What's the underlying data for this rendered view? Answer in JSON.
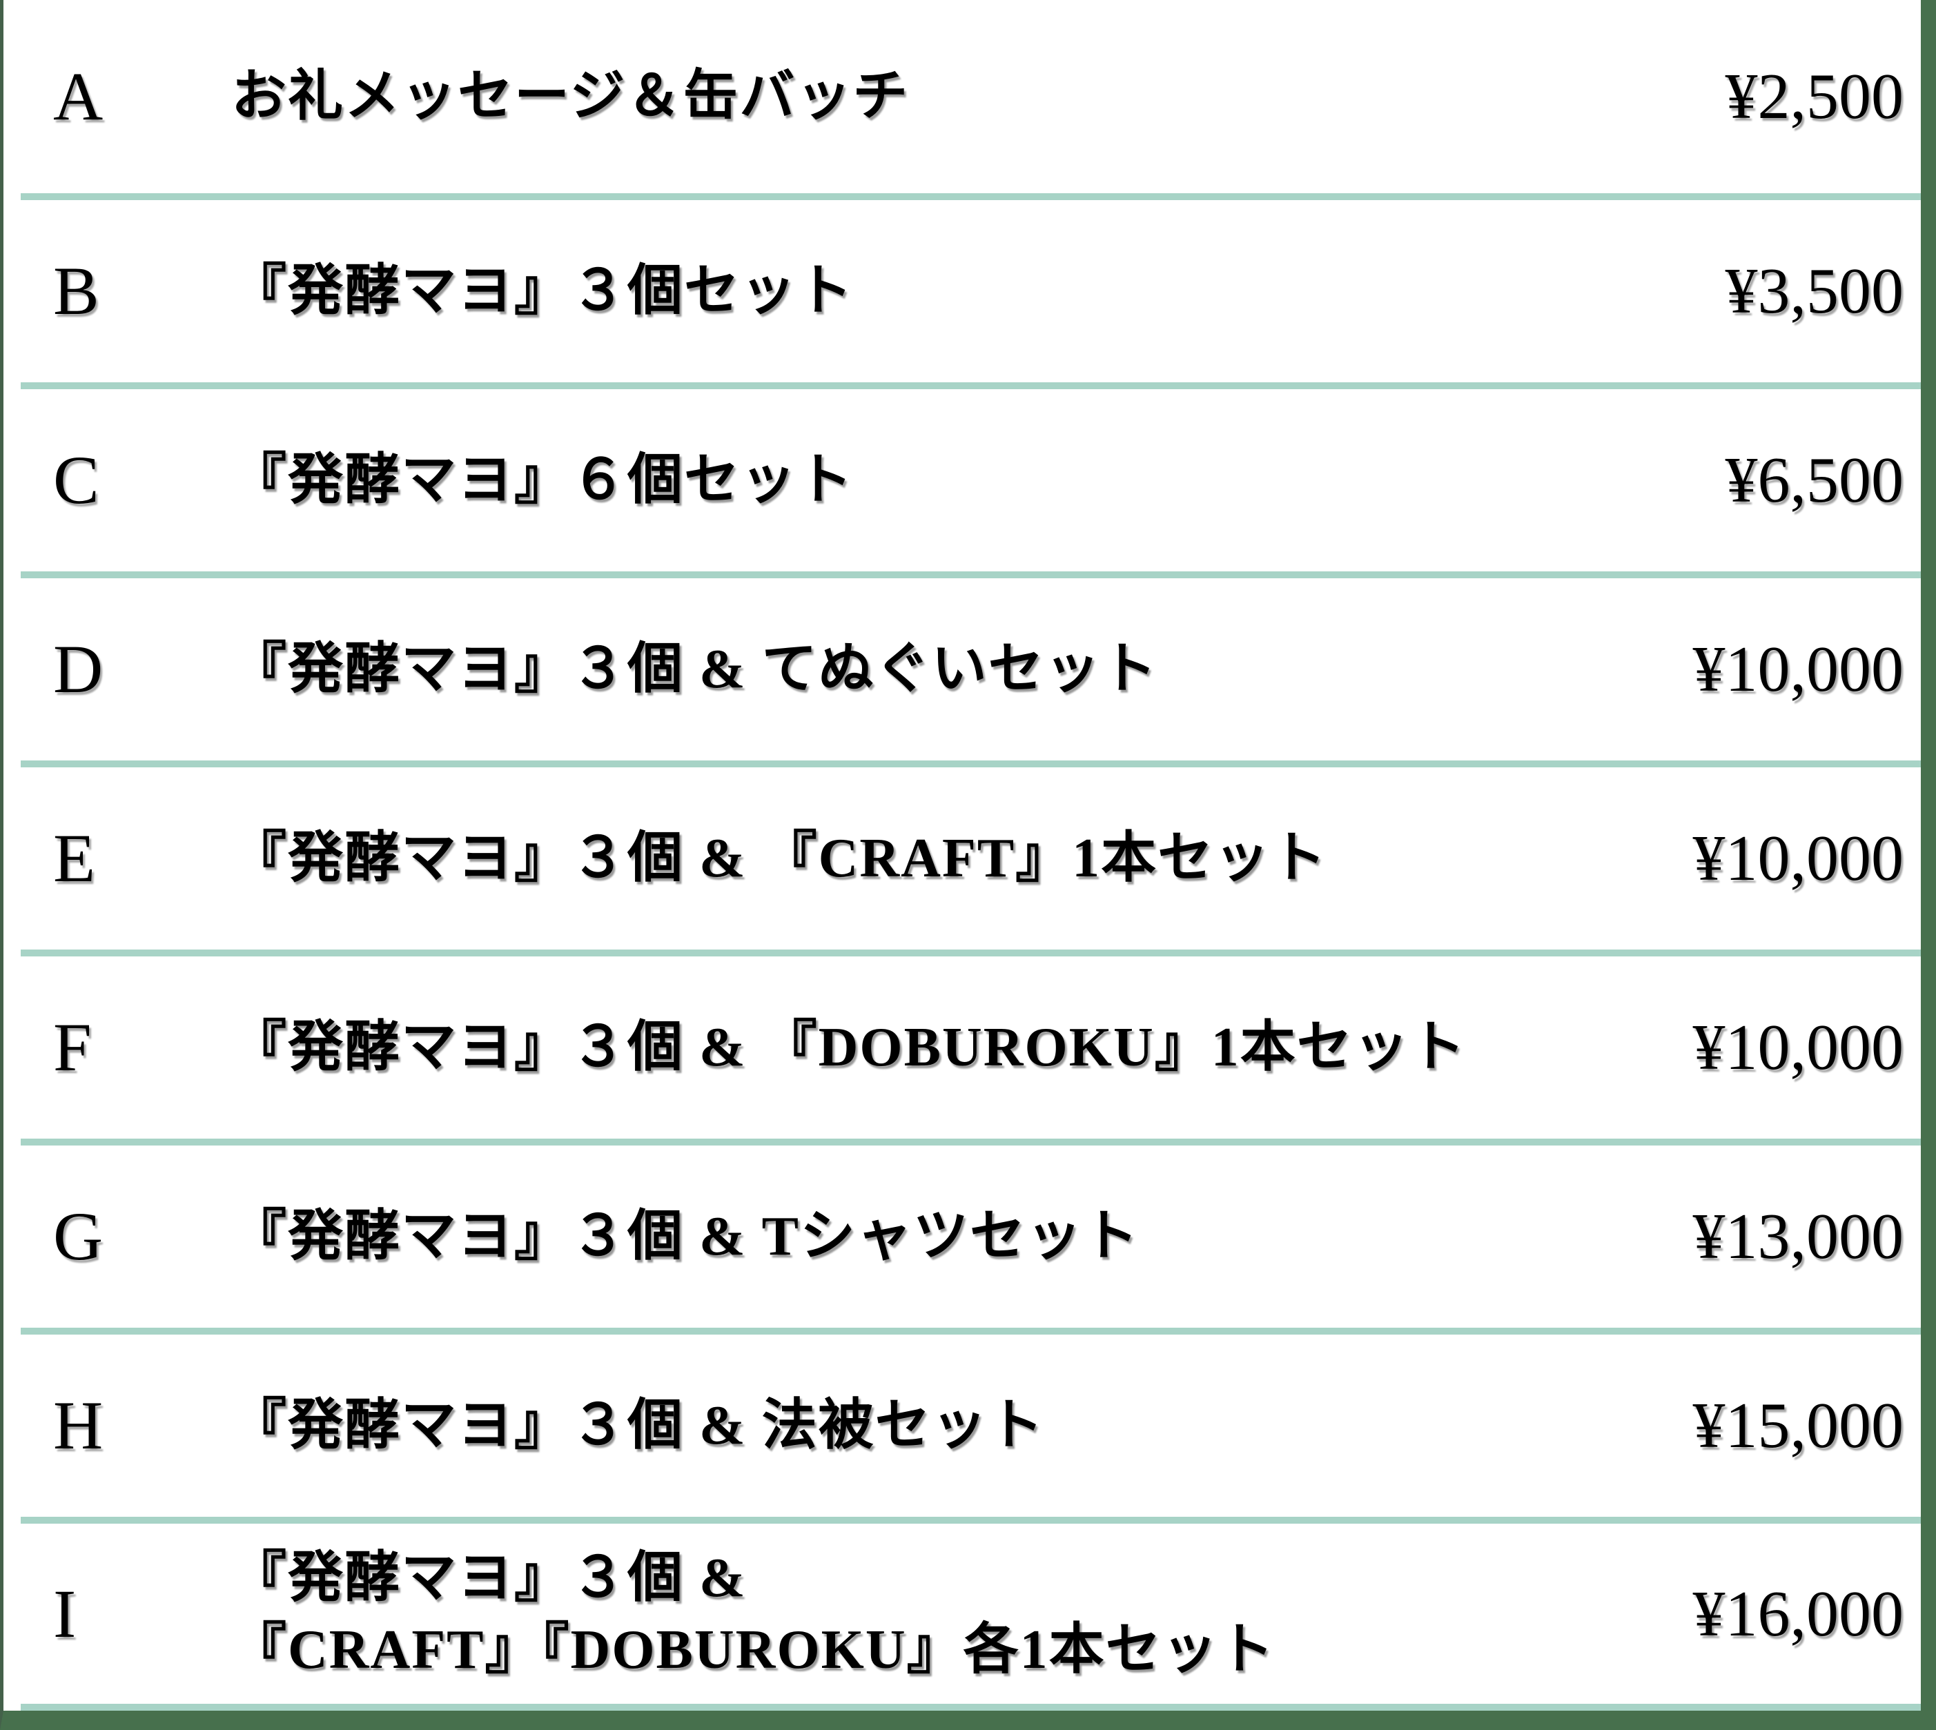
{
  "table": {
    "rows": [
      {
        "letter": "A",
        "description_lines": [
          "お礼メッセージ＆缶バッチ"
        ],
        "price": "¥2,500"
      },
      {
        "letter": "B",
        "description_lines": [
          "『発酵マヨ』３個セット"
        ],
        "price": "¥3,500"
      },
      {
        "letter": "C",
        "description_lines": [
          "『発酵マヨ』６個セット"
        ],
        "price": "¥6,500"
      },
      {
        "letter": "D",
        "description_lines": [
          "『発酵マヨ』３個 & てぬぐいセット"
        ],
        "price": "¥10,000"
      },
      {
        "letter": "E",
        "description_lines": [
          "『発酵マヨ』３個 & 『CRAFT』1本セット"
        ],
        "price": "¥10,000"
      },
      {
        "letter": "F",
        "description_lines": [
          "『発酵マヨ』３個 & 『DOBUROKU』1本セット"
        ],
        "price": "¥10,000"
      },
      {
        "letter": "G",
        "description_lines": [
          "『発酵マヨ』３個 & Tシャツセット"
        ],
        "price": "¥13,000"
      },
      {
        "letter": "H",
        "description_lines": [
          "『発酵マヨ』３個 & 法被セット"
        ],
        "price": "¥15,000"
      },
      {
        "letter": "I",
        "description_lines": [
          "『発酵マヨ』３個 &",
          "『CRAFT』『DOBUROKU』各1本セット"
        ],
        "price": "¥16,000"
      }
    ]
  },
  "colors": {
    "background": "#ffffff",
    "text": "#000000",
    "divider": "#a7d3c6",
    "frame": "#47704d"
  }
}
